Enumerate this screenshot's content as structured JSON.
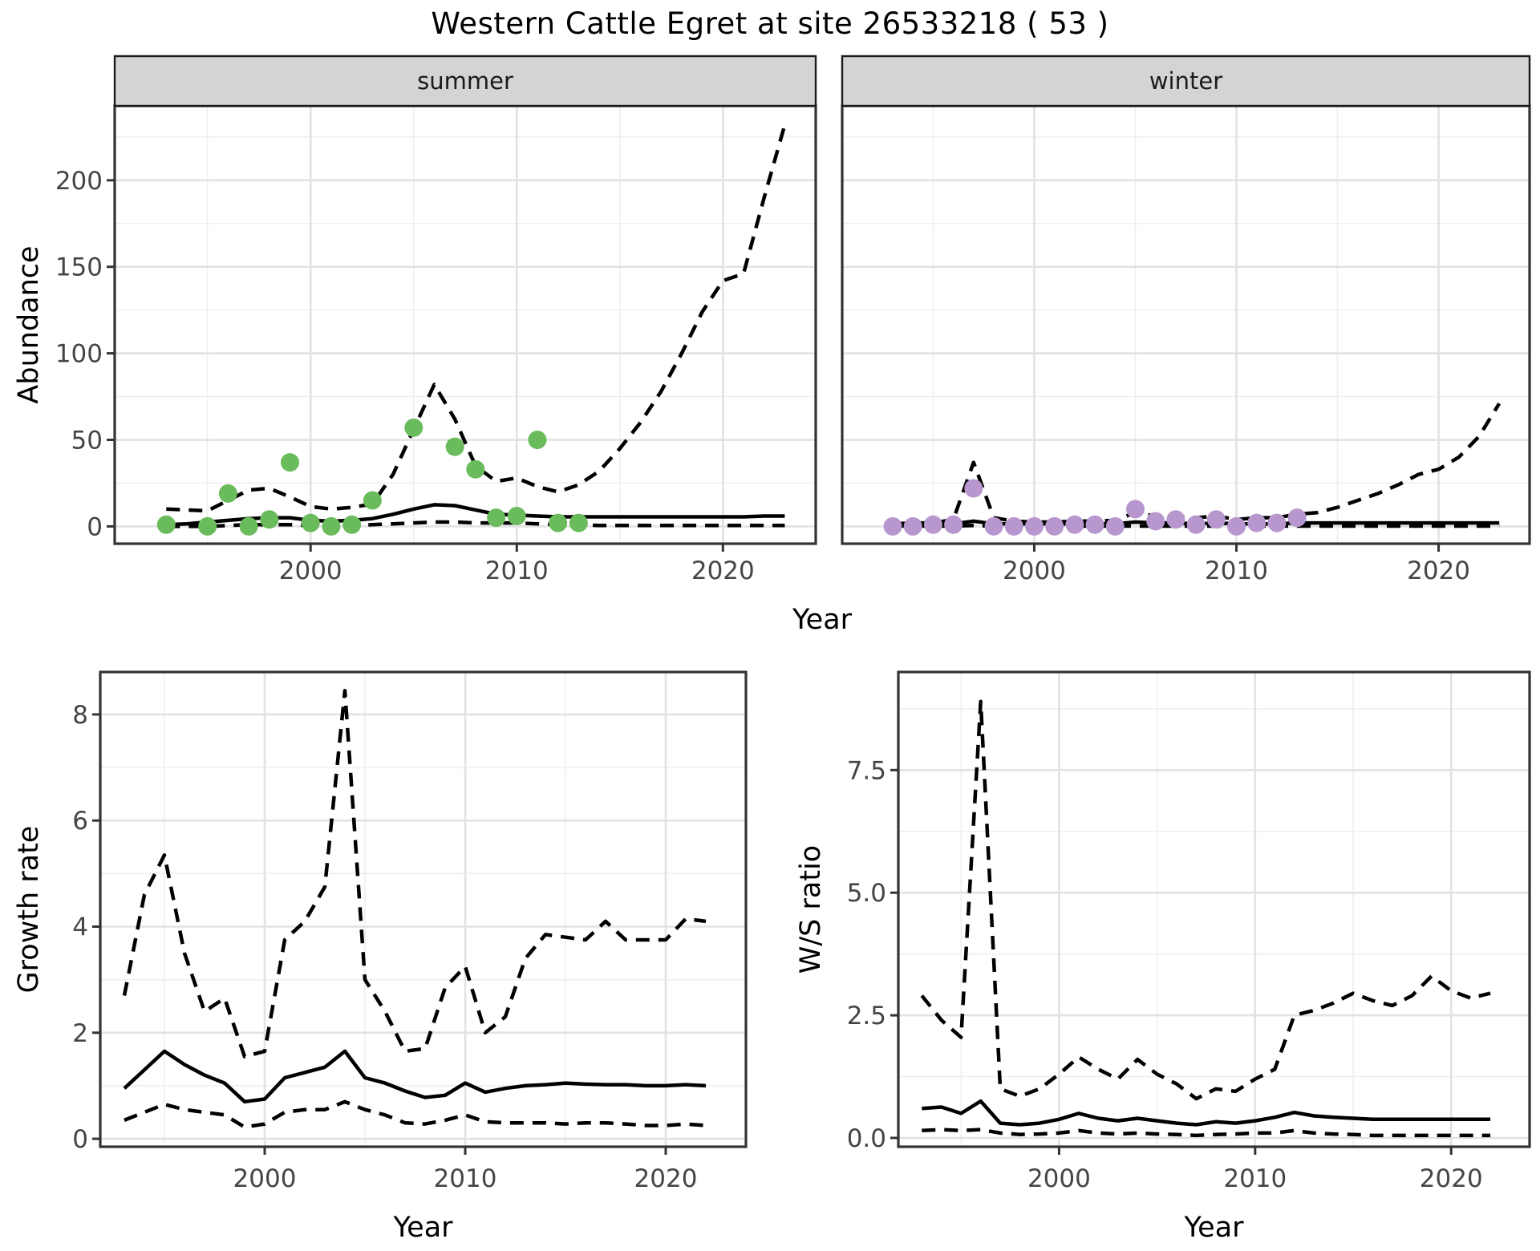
{
  "title": "Western Cattle Egret at site 26533218 ( 53 )",
  "style": {
    "point_green": "#6ABB5B",
    "point_purple": "#B897CF",
    "line_color": "#000000",
    "strip_bg": "#D4D4D4",
    "strip_border": "#1A1A1A",
    "panel_border": "#333333",
    "grid_major": "#E2E2E2",
    "grid_minor": "#EFEFEF",
    "axis_text": "#454545",
    "title_text": "#000000"
  },
  "chart_data": [
    {
      "id": "abundance-summer",
      "type": "line",
      "facet_label": "summer",
      "ylabel": "Abundance",
      "xlabel": "Year",
      "xlim": [
        1990.5,
        2024.5
      ],
      "ylim": [
        -10,
        243
      ],
      "x_ticks": [
        2000,
        2010,
        2020
      ],
      "x_tick_labels": [
        "2000",
        "2010",
        "2020"
      ],
      "y_ticks": [
        0,
        50,
        100,
        150,
        200
      ],
      "y_tick_labels": [
        "0",
        "50",
        "100",
        "150",
        "200"
      ],
      "years": [
        1993,
        1994,
        1995,
        1996,
        1997,
        1998,
        1999,
        2000,
        2001,
        2002,
        2003,
        2004,
        2005,
        2006,
        2007,
        2008,
        2009,
        2010,
        2011,
        2012,
        2013,
        2014,
        2015,
        2016,
        2017,
        2018,
        2019,
        2020,
        2021,
        2022,
        2023
      ],
      "series": [
        {
          "name": "upper-ci",
          "style": "dashed",
          "values": [
            10,
            9.5,
            9,
            15,
            21,
            22,
            17,
            11.5,
            10,
            11,
            13,
            30,
            56,
            82,
            62,
            35,
            26,
            28,
            23,
            20,
            24,
            32,
            45,
            60,
            78,
            100,
            124,
            142,
            146,
            190,
            232
          ]
        },
        {
          "name": "lower-ci",
          "style": "dashed",
          "values": [
            0,
            0,
            0,
            0.5,
            1,
            1,
            1,
            0.5,
            0.5,
            0.5,
            1,
            1.5,
            2,
            2.5,
            2.5,
            2,
            2,
            2,
            1.5,
            1,
            1,
            0.5,
            0.5,
            0.5,
            0.5,
            0.5,
            0.5,
            0.5,
            0.5,
            0.5,
            0.5
          ]
        },
        {
          "name": "median",
          "style": "solid",
          "values": [
            1,
            1.5,
            2.5,
            3.5,
            4.5,
            5,
            5,
            3.5,
            3,
            3.5,
            4.5,
            7,
            10,
            12.5,
            12,
            9.5,
            7,
            6.5,
            6,
            5.5,
            5.5,
            5.5,
            5.5,
            5.5,
            5.5,
            5.5,
            5.5,
            5.5,
            5.5,
            6,
            6
          ]
        }
      ],
      "points": {
        "name": "observed-counts-summer",
        "color_key": "point_green",
        "years": [
          1993,
          1995,
          1996,
          1997,
          1998,
          1999,
          2000,
          2001,
          2002,
          2003,
          2005,
          2007,
          2008,
          2009,
          2010,
          2011,
          2012,
          2013
        ],
        "values": [
          1,
          0,
          19,
          0,
          4,
          37,
          2,
          0,
          1,
          15,
          57,
          46,
          33,
          5,
          6,
          50,
          2,
          2
        ]
      }
    },
    {
      "id": "abundance-winter",
      "type": "line",
      "facet_label": "winter",
      "ylabel": "",
      "xlabel": "Year",
      "xlim": [
        1990.5,
        2024.5
      ],
      "ylim": [
        -10,
        243
      ],
      "x_ticks": [
        2000,
        2010,
        2020
      ],
      "x_tick_labels": [
        "2000",
        "2010",
        "2020"
      ],
      "y_ticks": [
        0,
        50,
        100,
        150,
        200
      ],
      "y_tick_labels": [],
      "years": [
        1993,
        1994,
        1995,
        1996,
        1997,
        1998,
        1999,
        2000,
        2001,
        2002,
        2003,
        2004,
        2005,
        2006,
        2007,
        2008,
        2009,
        2010,
        2011,
        2012,
        2013,
        2014,
        2015,
        2016,
        2017,
        2018,
        2019,
        2020,
        2021,
        2022,
        2023
      ],
      "series": [
        {
          "name": "upper-ci",
          "style": "dashed",
          "values": [
            1.5,
            2,
            2,
            4,
            37,
            5,
            3,
            2.5,
            2.5,
            3,
            3,
            3.5,
            8,
            6,
            6,
            5,
            6,
            4,
            5,
            5,
            7,
            8,
            11,
            15,
            19,
            24,
            30,
            33,
            40,
            52,
            71
          ]
        },
        {
          "name": "lower-ci",
          "style": "dashed",
          "values": [
            0.2,
            0.2,
            0.2,
            0.2,
            0.5,
            0.2,
            0.2,
            0.2,
            0.2,
            0.2,
            0.2,
            0.2,
            0.2,
            0.2,
            0.2,
            0.2,
            0.2,
            0.2,
            0.2,
            0.2,
            0.2,
            0.2,
            0.2,
            0.2,
            0.2,
            0.2,
            0.2,
            0.2,
            0.2,
            0.2,
            0.2
          ]
        },
        {
          "name": "median",
          "style": "solid",
          "values": [
            1,
            1,
            1,
            1.5,
            3,
            1.5,
            1.5,
            1.5,
            1.5,
            1.5,
            1.5,
            1.5,
            2.5,
            2,
            2,
            1.5,
            2,
            1.5,
            1.5,
            1.5,
            2,
            2,
            2,
            2,
            2,
            2,
            2,
            2,
            2,
            2,
            2
          ]
        }
      ],
      "points": {
        "name": "observed-counts-winter",
        "color_key": "point_purple",
        "years": [
          1993,
          1994,
          1995,
          1996,
          1997,
          1998,
          1999,
          2000,
          2001,
          2002,
          2003,
          2004,
          2005,
          2006,
          2007,
          2008,
          2009,
          2010,
          2011,
          2012,
          2013
        ],
        "values": [
          0,
          0,
          1,
          1,
          22,
          0,
          0,
          0,
          0,
          1,
          1,
          0,
          10,
          3,
          4,
          1,
          4,
          0,
          2,
          2,
          5
        ]
      }
    },
    {
      "id": "growth-rate",
      "type": "line",
      "facet_label": null,
      "ylabel": "Growth rate",
      "xlabel": "Year",
      "xlim": [
        1991.8,
        2024.0
      ],
      "ylim": [
        -0.15,
        8.8
      ],
      "x_ticks": [
        2000,
        2010,
        2020
      ],
      "x_tick_labels": [
        "2000",
        "2010",
        "2020"
      ],
      "y_ticks": [
        0,
        2,
        4,
        6,
        8
      ],
      "y_tick_labels": [
        "0",
        "2",
        "4",
        "6",
        "8"
      ],
      "years": [
        1993,
        1994,
        1995,
        1996,
        1997,
        1998,
        1999,
        2000,
        2001,
        2002,
        2003,
        2004,
        2005,
        2006,
        2007,
        2008,
        2009,
        2010,
        2011,
        2012,
        2013,
        2014,
        2015,
        2016,
        2017,
        2018,
        2019,
        2020,
        2021,
        2022
      ],
      "series": [
        {
          "name": "upper-ci",
          "style": "dashed",
          "values": [
            2.7,
            4.6,
            5.35,
            3.5,
            2.4,
            2.65,
            1.55,
            1.65,
            3.75,
            4.1,
            4.75,
            8.45,
            3.0,
            2.4,
            1.65,
            1.7,
            2.85,
            3.25,
            2.0,
            2.3,
            3.4,
            3.85,
            3.8,
            3.75,
            4.1,
            3.75,
            3.75,
            3.75,
            4.15,
            4.1
          ]
        },
        {
          "name": "lower-ci",
          "style": "dashed",
          "values": [
            0.35,
            0.5,
            0.65,
            0.55,
            0.5,
            0.45,
            0.22,
            0.28,
            0.5,
            0.55,
            0.55,
            0.7,
            0.55,
            0.45,
            0.3,
            0.28,
            0.35,
            0.45,
            0.32,
            0.3,
            0.3,
            0.3,
            0.28,
            0.3,
            0.3,
            0.28,
            0.25,
            0.25,
            0.28,
            0.25
          ]
        },
        {
          "name": "median",
          "style": "solid",
          "values": [
            0.95,
            1.3,
            1.65,
            1.4,
            1.2,
            1.05,
            0.7,
            0.75,
            1.15,
            1.25,
            1.35,
            1.65,
            1.15,
            1.05,
            0.9,
            0.78,
            0.82,
            1.05,
            0.88,
            0.95,
            1.0,
            1.02,
            1.05,
            1.03,
            1.02,
            1.02,
            1.0,
            1.0,
            1.02,
            1.0
          ]
        }
      ],
      "points": null
    },
    {
      "id": "ws-ratio",
      "type": "line",
      "facet_label": null,
      "ylabel": "W/S ratio",
      "xlabel": "Year",
      "xlim": [
        1991.8,
        2024.0
      ],
      "ylim": [
        -0.18,
        9.5
      ],
      "x_ticks": [
        2000,
        2010,
        2020
      ],
      "x_tick_labels": [
        "2000",
        "2010",
        "2020"
      ],
      "y_ticks": [
        0,
        2.5,
        5,
        7.5
      ],
      "y_tick_labels": [
        "0.0",
        "2.5",
        "5.0",
        "7.5"
      ],
      "years": [
        1993,
        1994,
        1995,
        1996,
        1997,
        1998,
        1999,
        2000,
        2001,
        2002,
        2003,
        2004,
        2005,
        2006,
        2007,
        2008,
        2009,
        2010,
        2011,
        2012,
        2013,
        2014,
        2015,
        2016,
        2017,
        2018,
        2019,
        2020,
        2021,
        2022
      ],
      "series": [
        {
          "name": "upper-ci",
          "style": "dashed",
          "values": [
            2.9,
            2.4,
            2.05,
            8.9,
            1.0,
            0.85,
            1.0,
            1.3,
            1.65,
            1.4,
            1.2,
            1.6,
            1.3,
            1.1,
            0.8,
            1.0,
            0.95,
            1.2,
            1.4,
            2.5,
            2.6,
            2.75,
            2.95,
            2.8,
            2.7,
            2.9,
            3.3,
            3.0,
            2.85,
            2.95
          ]
        },
        {
          "name": "lower-ci",
          "style": "dashed",
          "values": [
            0.15,
            0.17,
            0.15,
            0.17,
            0.1,
            0.07,
            0.08,
            0.1,
            0.15,
            0.1,
            0.08,
            0.1,
            0.08,
            0.07,
            0.05,
            0.07,
            0.08,
            0.1,
            0.1,
            0.15,
            0.1,
            0.08,
            0.07,
            0.05,
            0.05,
            0.05,
            0.05,
            0.05,
            0.05,
            0.05
          ]
        },
        {
          "name": "median",
          "style": "solid",
          "values": [
            0.6,
            0.63,
            0.5,
            0.75,
            0.3,
            0.27,
            0.3,
            0.38,
            0.5,
            0.4,
            0.35,
            0.4,
            0.35,
            0.3,
            0.27,
            0.33,
            0.3,
            0.35,
            0.42,
            0.52,
            0.45,
            0.42,
            0.4,
            0.38,
            0.38,
            0.38,
            0.38,
            0.38,
            0.38,
            0.38
          ]
        }
      ],
      "points": null
    }
  ]
}
